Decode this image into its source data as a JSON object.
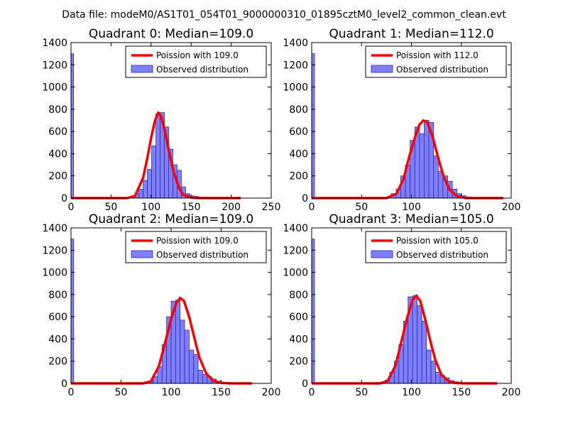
{
  "figure": {
    "suptitle": "Data file: modeM0/AS1T01_054T01_9000000310_01895cztM0_level2_common_clean.evt",
    "colors": {
      "hist_fill": "#7f7ffa",
      "hist_edge": "#2b2bb0",
      "curve": "#ff0000",
      "axis": "#000000"
    }
  },
  "chart_data": [
    {
      "type": "bar",
      "title": "Quadrant 0: Median=109.0",
      "xlabel": "",
      "ylabel": "",
      "xlim": [
        0,
        250
      ],
      "ylim": [
        0,
        1400
      ],
      "xticks": [
        "0",
        "50",
        "100",
        "150",
        "200",
        "250"
      ],
      "yticks": [
        "0",
        "200",
        "400",
        "600",
        "800",
        "1000",
        "1200",
        "1400"
      ],
      "legend_position": "upper right",
      "bin_width": 5.3,
      "series": [
        {
          "name": "Observed distribution",
          "bins": [
            [
              0,
              1300
            ],
            [
              79.5,
              40
            ],
            [
              84.8,
              80
            ],
            [
              90.1,
              160
            ],
            [
              95.4,
              260
            ],
            [
              100.7,
              470
            ],
            [
              106.0,
              760
            ],
            [
              111.3,
              770
            ],
            [
              116.6,
              640
            ],
            [
              121.9,
              440
            ],
            [
              127.2,
              300
            ],
            [
              132.5,
              250
            ],
            [
              137.8,
              100
            ],
            [
              143.1,
              40
            ],
            [
              148.4,
              20
            ],
            [
              153.7,
              15
            ],
            [
              159.0,
              8
            ],
            [
              164.3,
              5
            ],
            [
              169.6,
              3
            ],
            [
              174.9,
              2
            ],
            [
              180.2,
              2
            ],
            [
              185.5,
              1
            ],
            [
              190.8,
              1
            ],
            [
              196.1,
              1
            ],
            [
              201.4,
              1
            ],
            [
              206.7,
              1
            ]
          ]
        },
        {
          "name": "Poission with 109.0",
          "curve": [
            [
              0,
              0
            ],
            [
              70,
              0
            ],
            [
              80,
              20
            ],
            [
              90,
              180
            ],
            [
              95,
              350
            ],
            [
              100,
              540
            ],
            [
              105,
              700
            ],
            [
              109,
              770
            ],
            [
              113,
              730
            ],
            [
              118,
              580
            ],
            [
              123,
              400
            ],
            [
              128,
              240
            ],
            [
              135,
              90
            ],
            [
              140,
              30
            ],
            [
              150,
              5
            ],
            [
              160,
              0
            ],
            [
              212,
              0
            ]
          ]
        }
      ]
    },
    {
      "type": "bar",
      "title": "Quadrant 1: Median=112.0",
      "xlabel": "",
      "ylabel": "",
      "xlim": [
        0,
        200
      ],
      "ylim": [
        0,
        1400
      ],
      "xticks": [
        "0",
        "50",
        "100",
        "150",
        "200"
      ],
      "yticks": [
        "0",
        "200",
        "400",
        "600",
        "800",
        "1000",
        "1200",
        "1400"
      ],
      "legend_position": "upper right",
      "bin_width": 4.7,
      "series": [
        {
          "name": "Observed distribution",
          "bins": [
            [
              0,
              1300
            ],
            [
              79.9,
              40
            ],
            [
              84.6,
              80
            ],
            [
              89.3,
              200
            ],
            [
              94.0,
              300
            ],
            [
              98.7,
              520
            ],
            [
              103.4,
              640
            ],
            [
              108.1,
              580
            ],
            [
              112.8,
              700
            ],
            [
              117.5,
              680
            ],
            [
              122.2,
              380
            ],
            [
              126.9,
              240
            ],
            [
              131.6,
              200
            ],
            [
              136.3,
              150
            ],
            [
              141.0,
              80
            ],
            [
              145.7,
              40
            ],
            [
              150.4,
              20
            ],
            [
              155.1,
              10
            ],
            [
              159.8,
              5
            ],
            [
              164.5,
              3
            ],
            [
              169.2,
              2
            ],
            [
              173.9,
              2
            ],
            [
              178.6,
              1
            ],
            [
              183.3,
              1
            ],
            [
              188.0,
              1
            ]
          ]
        },
        {
          "name": "Poission with 112.0",
          "curve": [
            [
              0,
              0
            ],
            [
              75,
              0
            ],
            [
              85,
              40
            ],
            [
              92,
              170
            ],
            [
              98,
              380
            ],
            [
              104,
              560
            ],
            [
              108,
              660
            ],
            [
              112,
              700
            ],
            [
              116,
              680
            ],
            [
              121,
              560
            ],
            [
              126,
              390
            ],
            [
              132,
              200
            ],
            [
              138,
              80
            ],
            [
              145,
              20
            ],
            [
              155,
              0
            ],
            [
              192,
              0
            ]
          ]
        }
      ]
    },
    {
      "type": "bar",
      "title": "Quadrant 2: Median=109.0",
      "xlabel": "",
      "ylabel": "",
      "xlim": [
        0,
        200
      ],
      "ylim": [
        0,
        1400
      ],
      "xticks": [
        "0",
        "50",
        "100",
        "150",
        "200"
      ],
      "yticks": [
        "0",
        "200",
        "400",
        "600",
        "800",
        "1000",
        "1200",
        "1400"
      ],
      "legend_position": "upper right",
      "bin_width": 4.5,
      "series": [
        {
          "name": "Observed distribution",
          "bins": [
            [
              0,
              1300
            ],
            [
              77.5,
              20
            ],
            [
              82.0,
              60
            ],
            [
              86.5,
              150
            ],
            [
              91.0,
              350
            ],
            [
              95.5,
              600
            ],
            [
              100.0,
              740
            ],
            [
              104.5,
              750
            ],
            [
              109.0,
              570
            ],
            [
              113.5,
              480
            ],
            [
              118.0,
              300
            ],
            [
              122.5,
              260
            ],
            [
              127.0,
              120
            ],
            [
              131.5,
              80
            ],
            [
              136.0,
              60
            ],
            [
              140.5,
              40
            ],
            [
              145.0,
              20
            ],
            [
              149.5,
              10
            ],
            [
              154.0,
              5
            ],
            [
              158.5,
              3
            ],
            [
              163.0,
              2
            ],
            [
              167.5,
              1
            ],
            [
              172.0,
              1
            ],
            [
              176.5,
              1
            ]
          ]
        },
        {
          "name": "Poission with 109.0",
          "curve": [
            [
              0,
              0
            ],
            [
              72,
              0
            ],
            [
              80,
              20
            ],
            [
              88,
              160
            ],
            [
              95,
              400
            ],
            [
              100,
              580
            ],
            [
              105,
              720
            ],
            [
              109,
              770
            ],
            [
              113,
              740
            ],
            [
              118,
              600
            ],
            [
              123,
              420
            ],
            [
              128,
              240
            ],
            [
              135,
              90
            ],
            [
              142,
              25
            ],
            [
              150,
              5
            ],
            [
              160,
              0
            ],
            [
              181,
              0
            ]
          ]
        }
      ]
    },
    {
      "type": "bar",
      "title": "Quadrant 3: Median=105.0",
      "xlabel": "",
      "ylabel": "",
      "xlim": [
        0,
        200
      ],
      "ylim": [
        0,
        1400
      ],
      "xticks": [
        "0",
        "50",
        "100",
        "150",
        "200"
      ],
      "yticks": [
        "0",
        "200",
        "400",
        "600",
        "800",
        "1000",
        "1200",
        "1400"
      ],
      "legend_position": "upper right",
      "bin_width": 4.6,
      "series": [
        {
          "name": "Observed distribution",
          "bins": [
            [
              0,
              1300
            ],
            [
              73.6,
              30
            ],
            [
              78.2,
              100
            ],
            [
              82.8,
              200
            ],
            [
              87.4,
              350
            ],
            [
              92.0,
              560
            ],
            [
              96.6,
              780
            ],
            [
              101.2,
              790
            ],
            [
              105.8,
              700
            ],
            [
              110.4,
              560
            ],
            [
              115.0,
              300
            ],
            [
              119.6,
              200
            ],
            [
              124.2,
              100
            ],
            [
              128.8,
              70
            ],
            [
              133.4,
              50
            ],
            [
              138.0,
              25
            ],
            [
              142.6,
              15
            ],
            [
              147.2,
              8
            ],
            [
              151.8,
              4
            ],
            [
              156.4,
              2
            ],
            [
              161.0,
              1
            ],
            [
              165.6,
              1
            ],
            [
              170.2,
              1
            ],
            [
              174.8,
              1
            ]
          ]
        },
        {
          "name": "Poission with 105.0",
          "curve": [
            [
              0,
              0
            ],
            [
              68,
              0
            ],
            [
              76,
              20
            ],
            [
              84,
              160
            ],
            [
              90,
              380
            ],
            [
              96,
              600
            ],
            [
              101,
              750
            ],
            [
              105,
              790
            ],
            [
              109,
              740
            ],
            [
              114,
              570
            ],
            [
              119,
              380
            ],
            [
              124,
              210
            ],
            [
              130,
              80
            ],
            [
              137,
              20
            ],
            [
              145,
              3
            ],
            [
              155,
              0
            ],
            [
              186,
              0
            ]
          ]
        }
      ]
    }
  ]
}
